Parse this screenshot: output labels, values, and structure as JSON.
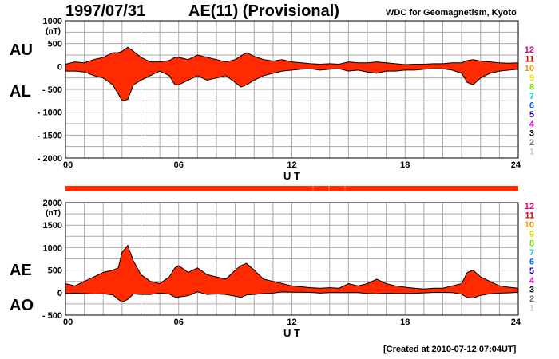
{
  "header": {
    "date": "1997/07/31",
    "title": "AE(11) (Provisional)",
    "source": "WDC for Geomagnetism, Kyoto",
    "created": "[Created at 2010-07-12 07:04UT]"
  },
  "colors": {
    "fill": "#ff2a00",
    "grid": "#aaaaaa",
    "line": "#000000"
  },
  "stations": [
    {
      "label": "12",
      "color": "#e8007a"
    },
    {
      "label": "11",
      "color": "#e60000"
    },
    {
      "label": "10",
      "color": "#f0a000"
    },
    {
      "label": "9",
      "color": "#e8e800"
    },
    {
      "label": "8",
      "color": "#80e000"
    },
    {
      "label": "7",
      "color": "#00d0e0"
    },
    {
      "label": "6",
      "color": "#0060ff"
    },
    {
      "label": "5",
      "color": "#2000a0"
    },
    {
      "label": "4",
      "color": "#d000d0"
    },
    {
      "label": "3",
      "color": "#000000"
    },
    {
      "label": "2",
      "color": "#707070"
    },
    {
      "label": "1",
      "color": "#c8c8c8"
    }
  ],
  "chart_data": [
    {
      "type": "area",
      "name": "AU/AL",
      "series_labels": [
        "AU",
        "AL"
      ],
      "unit": "(nT)",
      "xlabel": "U T",
      "xlim": [
        0,
        24
      ],
      "ylim": [
        -2000,
        1000
      ],
      "xticks": [
        "00",
        "06",
        "12",
        "18",
        "24"
      ],
      "yticks": [
        "1000",
        "500",
        "0",
        "- 500",
        "- 1000",
        "- 1500",
        "- 2000"
      ],
      "x": [
        0,
        0.5,
        1,
        1.5,
        2,
        2.5,
        2.8,
        3,
        3.3,
        3.6,
        4,
        4.5,
        5,
        5.5,
        5.8,
        6,
        6.5,
        7,
        7.5,
        8,
        8.5,
        9,
        9.3,
        9.6,
        10,
        10.5,
        11,
        11.5,
        12,
        12.5,
        13,
        13.5,
        14,
        14.5,
        15,
        15.5,
        16,
        16.5,
        17,
        17.5,
        18,
        18.5,
        19,
        19.5,
        20,
        20.5,
        21,
        21.3,
        21.6,
        22,
        22.5,
        23,
        23.5,
        24
      ],
      "au": [
        50,
        100,
        80,
        150,
        200,
        300,
        300,
        330,
        420,
        330,
        200,
        100,
        100,
        130,
        200,
        200,
        150,
        250,
        200,
        150,
        100,
        150,
        230,
        300,
        220,
        150,
        120,
        150,
        100,
        80,
        60,
        50,
        60,
        50,
        100,
        80,
        80,
        100,
        80,
        60,
        40,
        50,
        50,
        60,
        60,
        80,
        80,
        130,
        150,
        120,
        100,
        80,
        70,
        80
      ],
      "al": [
        -100,
        -100,
        -120,
        -200,
        -250,
        -400,
        -600,
        -750,
        -720,
        -400,
        -300,
        -200,
        -100,
        -200,
        -400,
        -400,
        -300,
        -200,
        -300,
        -250,
        -200,
        -350,
        -450,
        -400,
        -300,
        -200,
        -150,
        -100,
        -80,
        -60,
        -50,
        -80,
        -60,
        -50,
        -100,
        -80,
        -120,
        -150,
        -100,
        -100,
        -80,
        -80,
        -60,
        -50,
        -50,
        -80,
        -150,
        -350,
        -400,
        -250,
        -150,
        -100,
        -80,
        -60
      ]
    },
    {
      "type": "area",
      "name": "AE/AO",
      "series_labels": [
        "AE",
        "AO"
      ],
      "unit": "(nT)",
      "xlabel": "U T",
      "xlim": [
        0,
        24
      ],
      "ylim": [
        -500,
        2000
      ],
      "xticks": [
        "00",
        "06",
        "12",
        "18",
        "24"
      ],
      "yticks": [
        "2000",
        "1500",
        "1000",
        "500",
        "0",
        "- 500"
      ],
      "x": [
        0,
        0.5,
        1,
        1.5,
        2,
        2.5,
        2.8,
        3,
        3.3,
        3.6,
        4,
        4.5,
        5,
        5.5,
        5.8,
        6,
        6.5,
        7,
        7.5,
        8,
        8.5,
        9,
        9.3,
        9.6,
        10,
        10.5,
        11,
        11.5,
        12,
        12.5,
        13,
        13.5,
        14,
        14.5,
        15,
        15.5,
        16,
        16.5,
        17,
        17.5,
        18,
        18.5,
        19,
        19.5,
        20,
        20.5,
        21,
        21.3,
        21.6,
        22,
        22.5,
        23,
        23.5,
        24
      ],
      "ae": [
        200,
        150,
        250,
        350,
        450,
        500,
        550,
        900,
        1050,
        700,
        400,
        250,
        200,
        350,
        550,
        600,
        450,
        550,
        400,
        350,
        300,
        500,
        600,
        650,
        500,
        300,
        250,
        200,
        150,
        130,
        110,
        100,
        110,
        100,
        200,
        150,
        200,
        300,
        200,
        150,
        120,
        100,
        80,
        100,
        100,
        150,
        200,
        450,
        500,
        350,
        250,
        150,
        120,
        100
      ],
      "ao": [
        -20,
        -10,
        -20,
        -30,
        -25,
        -50,
        -150,
        -210,
        -150,
        -30,
        -40,
        -40,
        -10,
        -30,
        -100,
        -100,
        -70,
        20,
        -40,
        -30,
        -40,
        -80,
        -110,
        -50,
        -40,
        -20,
        -10,
        20,
        10,
        10,
        5,
        -10,
        0,
        0,
        0,
        0,
        -20,
        -25,
        -10,
        -20,
        -20,
        -15,
        -5,
        5,
        5,
        0,
        -35,
        -110,
        -120,
        -60,
        -25,
        -10,
        -5,
        10
      ]
    }
  ]
}
